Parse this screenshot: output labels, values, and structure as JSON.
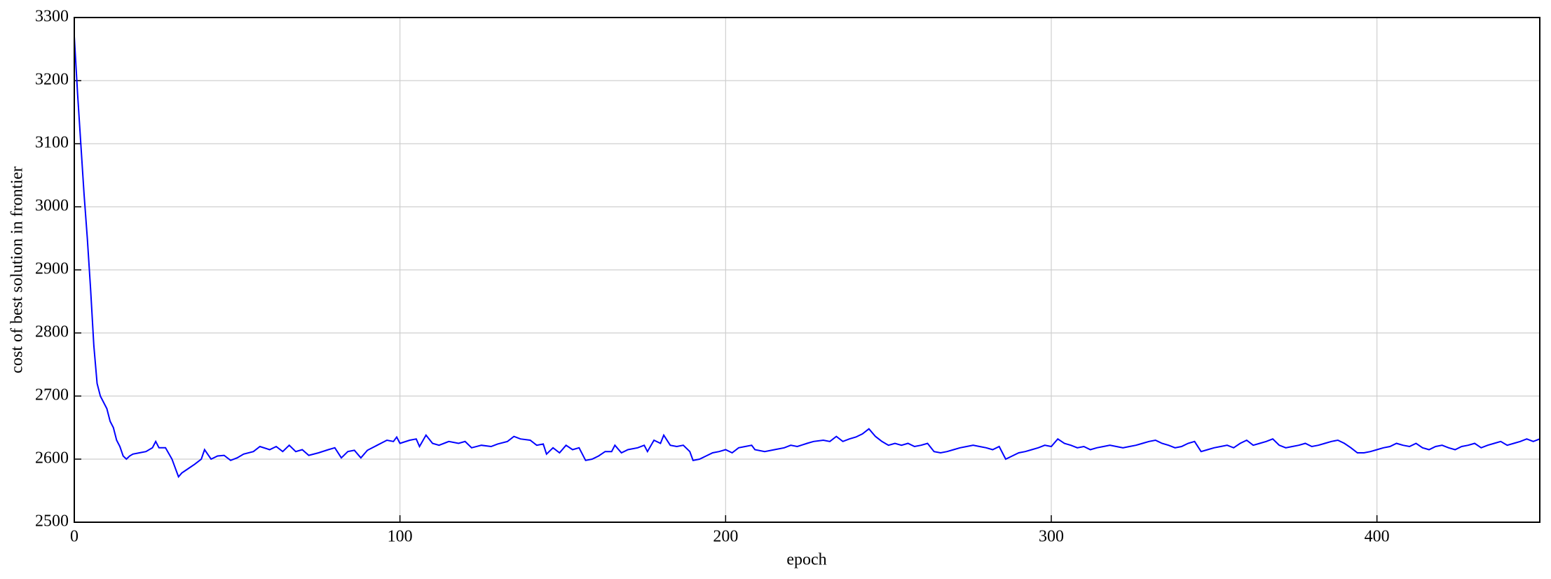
{
  "chart_data": {
    "type": "line",
    "xlabel": "epoch",
    "ylabel": "cost of best solution in frontier",
    "x": [
      0,
      1,
      2,
      3,
      4,
      5,
      6,
      7,
      8,
      9,
      10,
      11,
      12,
      13,
      14,
      15,
      16,
      17,
      18,
      20,
      22,
      24,
      25,
      26,
      28,
      30,
      32,
      33,
      35,
      37,
      39,
      40,
      42,
      44,
      46,
      48,
      50,
      52,
      55,
      57,
      60,
      62,
      64,
      66,
      68,
      70,
      72,
      75,
      78,
      80,
      82,
      84,
      86,
      88,
      90,
      93,
      96,
      98,
      99,
      100,
      103,
      105,
      106,
      108,
      110,
      112,
      115,
      118,
      120,
      122,
      125,
      128,
      130,
      133,
      135,
      137,
      140,
      142,
      144,
      145,
      147,
      149,
      151,
      153,
      155,
      157,
      159,
      161,
      163,
      165,
      166,
      168,
      170,
      173,
      175,
      176,
      178,
      180,
      181,
      183,
      185,
      187,
      189,
      190,
      192,
      194,
      196,
      198,
      200,
      202,
      204,
      206,
      208,
      209,
      212,
      215,
      218,
      220,
      222,
      225,
      227,
      230,
      232,
      234,
      236,
      238,
      240,
      242,
      244,
      246,
      248,
      250,
      252,
      254,
      256,
      258,
      260,
      262,
      264,
      266,
      268,
      270,
      272,
      274,
      276,
      278,
      280,
      282,
      284,
      286,
      288,
      290,
      292,
      294,
      296,
      298,
      300,
      302,
      304,
      306,
      308,
      310,
      312,
      314,
      316,
      318,
      320,
      322,
      324,
      326,
      328,
      330,
      332,
      334,
      336,
      338,
      340,
      342,
      344,
      346,
      348,
      350,
      352,
      354,
      356,
      358,
      360,
      362,
      364,
      366,
      368,
      370,
      372,
      374,
      376,
      378,
      380,
      382,
      384,
      386,
      388,
      390,
      392,
      394,
      396,
      398,
      400,
      402,
      404,
      406,
      408,
      410,
      412,
      414,
      416,
      418,
      420,
      422,
      424,
      426,
      428,
      430,
      432,
      434,
      436,
      438,
      440,
      442,
      444,
      446,
      448,
      450
    ],
    "values": [
      3270,
      3180,
      3100,
      3020,
      2950,
      2870,
      2780,
      2720,
      2700,
      2690,
      2680,
      2660,
      2650,
      2630,
      2620,
      2605,
      2600,
      2605,
      2608,
      2610,
      2612,
      2618,
      2628,
      2618,
      2618,
      2600,
      2572,
      2578,
      2585,
      2592,
      2600,
      2615,
      2600,
      2605,
      2606,
      2598,
      2602,
      2608,
      2612,
      2620,
      2615,
      2620,
      2612,
      2622,
      2612,
      2615,
      2606,
      2610,
      2615,
      2618,
      2602,
      2612,
      2614,
      2602,
      2614,
      2622,
      2630,
      2628,
      2635,
      2625,
      2630,
      2632,
      2620,
      2638,
      2625,
      2622,
      2628,
      2625,
      2628,
      2618,
      2622,
      2620,
      2624,
      2628,
      2636,
      2632,
      2630,
      2622,
      2624,
      2608,
      2618,
      2610,
      2622,
      2615,
      2618,
      2598,
      2600,
      2605,
      2612,
      2612,
      2622,
      2610,
      2615,
      2618,
      2622,
      2612,
      2630,
      2625,
      2638,
      2622,
      2620,
      2622,
      2612,
      2598,
      2600,
      2605,
      2610,
      2612,
      2615,
      2610,
      2618,
      2620,
      2622,
      2615,
      2612,
      2615,
      2618,
      2622,
      2620,
      2625,
      2628,
      2630,
      2628,
      2636,
      2628,
      2632,
      2635,
      2640,
      2648,
      2636,
      2628,
      2622,
      2625,
      2622,
      2625,
      2620,
      2622,
      2625,
      2612,
      2610,
      2612,
      2615,
      2618,
      2620,
      2622,
      2620,
      2618,
      2615,
      2620,
      2600,
      2605,
      2610,
      2612,
      2615,
      2618,
      2622,
      2620,
      2632,
      2625,
      2622,
      2618,
      2620,
      2615,
      2618,
      2620,
      2622,
      2620,
      2618,
      2620,
      2622,
      2625,
      2628,
      2630,
      2625,
      2622,
      2618,
      2620,
      2625,
      2628,
      2612,
      2615,
      2618,
      2620,
      2622,
      2618,
      2625,
      2630,
      2622,
      2625,
      2628,
      2632,
      2622,
      2618,
      2620,
      2622,
      2625,
      2620,
      2622,
      2625,
      2628,
      2630,
      2625,
      2618,
      2610,
      2610,
      2612,
      2615,
      2618,
      2620,
      2625,
      2622,
      2620,
      2625,
      2618,
      2615,
      2620,
      2622,
      2618,
      2615,
      2620,
      2622,
      2625,
      2618,
      2622,
      2625,
      2628,
      2622,
      2625,
      2628,
      2632,
      2628,
      2632
    ],
    "color": "#0000ff",
    "xlim": [
      0,
      450
    ],
    "xticks": [
      0,
      100,
      200,
      300,
      400
    ],
    "ylim": [
      2500,
      3300
    ],
    "yticks": [
      2500,
      2600,
      2700,
      2800,
      2900,
      3000,
      3100,
      3200,
      3300
    ],
    "grid": true
  }
}
